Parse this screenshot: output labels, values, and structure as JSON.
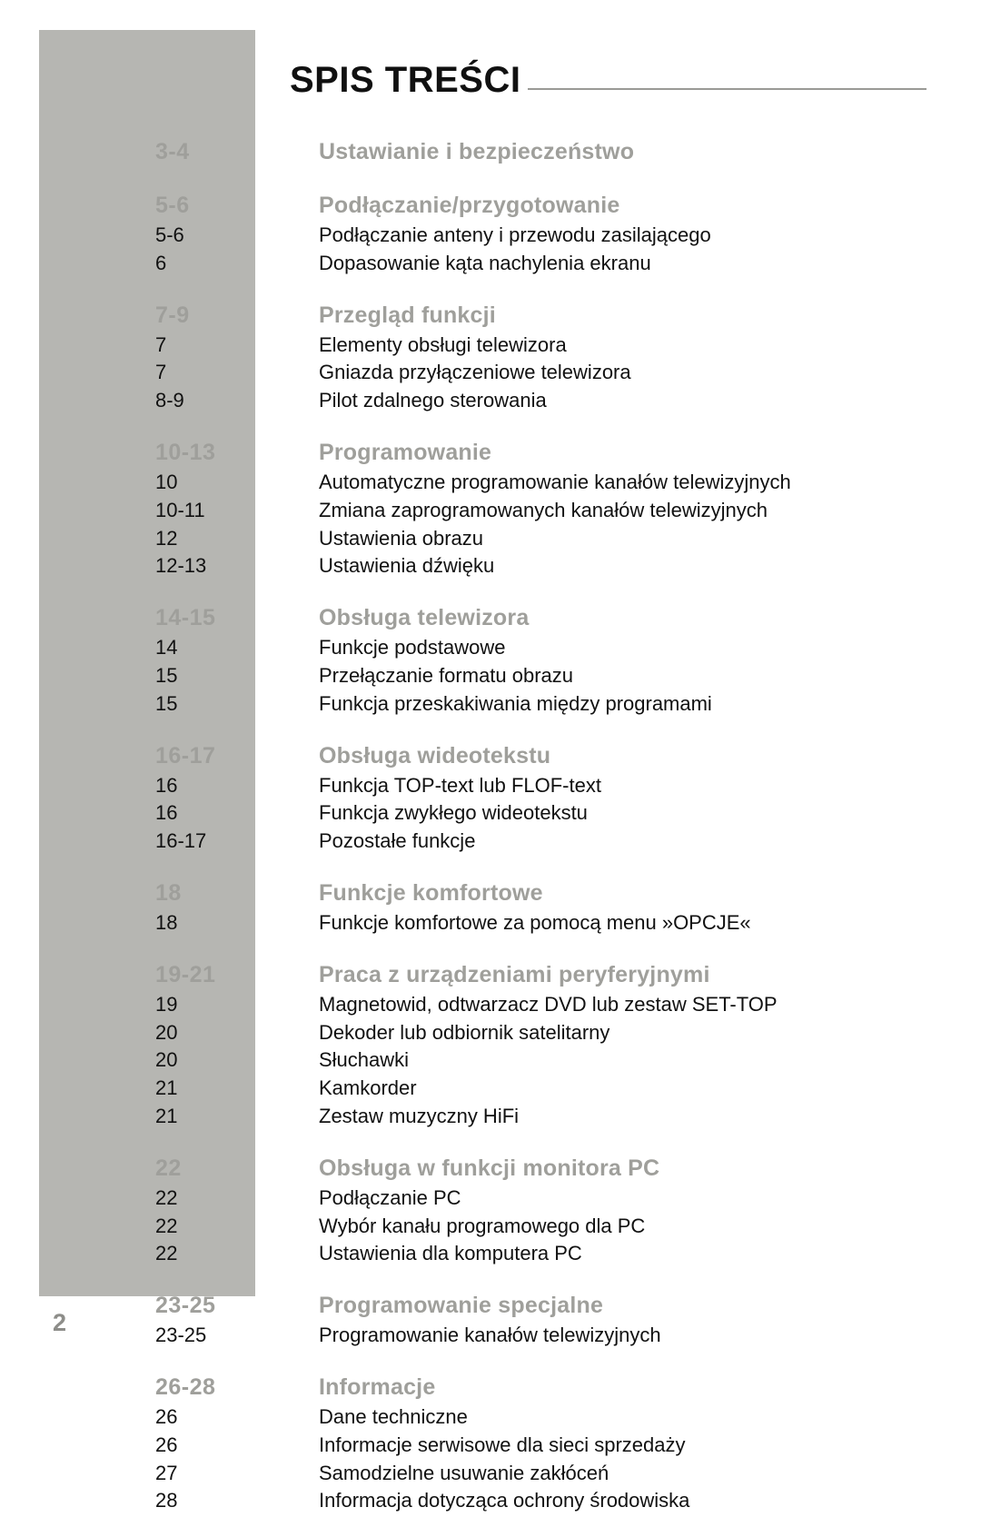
{
  "document": {
    "title": "SPIS TREŚCI",
    "page_number": "2",
    "colors": {
      "sidebar_bg": "#b6b6b2",
      "heading_gray": "#9f9f9b",
      "rule_gray": "#9a9a96",
      "text": "#111111",
      "page_num_gray": "#8d8d89"
    },
    "typography": {
      "title_fontsize": 40,
      "section_fontsize": 25,
      "sub_fontsize": 22,
      "page_num_fontsize": 27
    },
    "sections": [
      {
        "pages": "3-4",
        "title": "Ustawianie i bezpieczeństwo",
        "subs": []
      },
      {
        "pages": "5-6",
        "title": "Podłączanie/przygotowanie",
        "subs": [
          {
            "pages": "5-6",
            "title": "Podłączanie anteny i przewodu zasilającego"
          },
          {
            "pages": "6",
            "title": "Dopasowanie kąta nachylenia ekranu"
          }
        ]
      },
      {
        "pages": "7-9",
        "title": "Przegląd funkcji",
        "subs": [
          {
            "pages": "7",
            "title": "Elementy obsługi telewizora"
          },
          {
            "pages": "7",
            "title": "Gniazda przyłączeniowe telewizora"
          },
          {
            "pages": "8-9",
            "title": "Pilot zdalnego sterowania"
          }
        ]
      },
      {
        "pages": "10-13",
        "title": "Programowanie",
        "subs": [
          {
            "pages": "10",
            "title": "Automatyczne programowanie kanałów telewizyjnych"
          },
          {
            "pages": "10-11",
            "title": "Zmiana zaprogramowanych kanałów telewizyjnych"
          },
          {
            "pages": "12",
            "title": "Ustawienia obrazu"
          },
          {
            "pages": "12-13",
            "title": "Ustawienia dźwięku"
          }
        ]
      },
      {
        "pages": "14-15",
        "title": "Obsługa telewizora",
        "subs": [
          {
            "pages": "14",
            "title": "Funkcje podstawowe"
          },
          {
            "pages": "15",
            "title": "Przełączanie formatu obrazu"
          },
          {
            "pages": "15",
            "title": "Funkcja przeskakiwania między programami"
          }
        ]
      },
      {
        "pages": "16-17",
        "title": "Obsługa wideotekstu",
        "subs": [
          {
            "pages": "16",
            "title": "Funkcja TOP-text lub FLOF-text"
          },
          {
            "pages": "16",
            "title": "Funkcja zwykłego wideotekstu"
          },
          {
            "pages": "16-17",
            "title": "Pozostałe funkcje"
          }
        ]
      },
      {
        "pages": "18",
        "title": "Funkcje komfortowe",
        "subs": [
          {
            "pages": "18",
            "title": "Funkcje komfortowe za pomocą menu »OPCJE«"
          }
        ]
      },
      {
        "pages": "19-21",
        "title": "Praca z urządzeniami peryferyjnymi",
        "subs": [
          {
            "pages": "19",
            "title": "Magnetowid, odtwarzacz DVD lub zestaw SET-TOP"
          },
          {
            "pages": "20",
            "title": "Dekoder lub odbiornik satelitarny"
          },
          {
            "pages": "20",
            "title": "Słuchawki"
          },
          {
            "pages": "21",
            "title": "Kamkorder"
          },
          {
            "pages": "21",
            "title": "Zestaw muzyczny HiFi"
          }
        ]
      },
      {
        "pages": "22",
        "title": "Obsługa w funkcji monitora PC",
        "subs": [
          {
            "pages": "22",
            "title": "Podłączanie PC"
          },
          {
            "pages": "22",
            "title": "Wybór kanału programowego dla PC"
          },
          {
            "pages": "22",
            "title": "Ustawienia dla komputera PC"
          }
        ]
      },
      {
        "pages": "23-25",
        "title": "Programowanie specjalne",
        "subs": [
          {
            "pages": "23-25",
            "title": "Programowanie kanałów telewizyjnych"
          }
        ]
      },
      {
        "pages": "26-28",
        "title": "Informacje",
        "subs": [
          {
            "pages": "26",
            "title": "Dane techniczne"
          },
          {
            "pages": "26",
            "title": "Informacje serwisowe dla sieci sprzedaży"
          },
          {
            "pages": "27",
            "title": "Samodzielne usuwanie zakłóceń"
          },
          {
            "pages": "28",
            "title": "Informacja dotycząca ochrony środowiska"
          }
        ]
      }
    ]
  }
}
